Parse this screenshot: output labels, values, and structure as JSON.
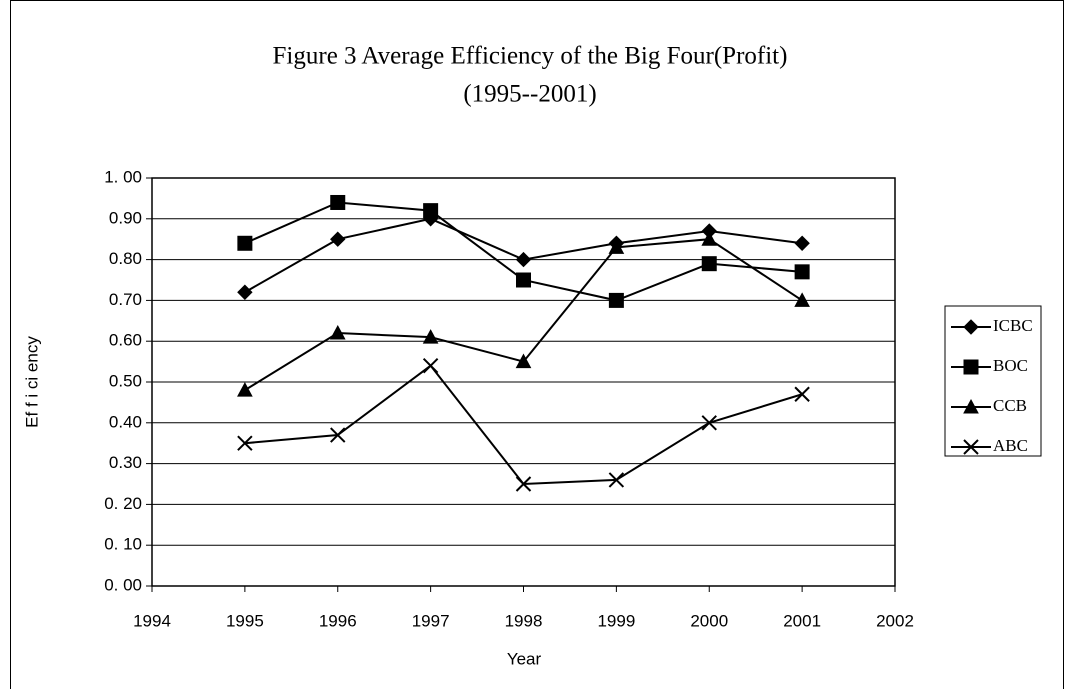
{
  "chart_data": {
    "type": "line",
    "title": "Figure 3  Average Efficiency of the Big Four(Profit)",
    "subtitle": "(1995--2001)",
    "x_label": "Year",
    "y_label": "Ef f i ci ency",
    "x": [
      1995,
      1996,
      1997,
      1998,
      1999,
      2000,
      2001
    ],
    "xlim": [
      1994,
      2002
    ],
    "xticks": [
      1994,
      1995,
      1996,
      1997,
      1998,
      1999,
      2000,
      2001,
      2002
    ],
    "ylim": [
      0,
      1
    ],
    "yticks": [
      {
        "value": 0,
        "label": "0. 00"
      },
      {
        "value": 0.1,
        "label": "0. 10"
      },
      {
        "value": 0.2,
        "label": "0. 20"
      },
      {
        "value": 0.3,
        "label": "0.30"
      },
      {
        "value": 0.4,
        "label": "0.40"
      },
      {
        "value": 0.5,
        "label": "0.50"
      },
      {
        "value": 0.6,
        "label": "0.60"
      },
      {
        "value": 0.7,
        "label": "0.70"
      },
      {
        "value": 0.8,
        "label": "0.80"
      },
      {
        "value": 0.9,
        "label": "0.90"
      },
      {
        "value": 1,
        "label": "1. 00"
      }
    ],
    "grid": true,
    "legend": "right",
    "series": [
      {
        "name": "ICBC",
        "color": "#000000",
        "marker": "diamond",
        "values": [
          0.72,
          0.85,
          0.9,
          0.8,
          0.84,
          0.87,
          0.84
        ]
      },
      {
        "name": "BOC",
        "color": "#000000",
        "marker": "square",
        "values": [
          0.84,
          0.94,
          0.92,
          0.75,
          0.7,
          0.79,
          0.77
        ]
      },
      {
        "name": "CCB",
        "color": "#000000",
        "marker": "triangle",
        "values": [
          0.48,
          0.62,
          0.61,
          0.55,
          0.83,
          0.85,
          0.7
        ]
      },
      {
        "name": "ABC",
        "color": "#000000",
        "marker": "x",
        "values": [
          0.35,
          0.37,
          0.54,
          0.25,
          0.26,
          0.4,
          0.47
        ]
      }
    ]
  }
}
